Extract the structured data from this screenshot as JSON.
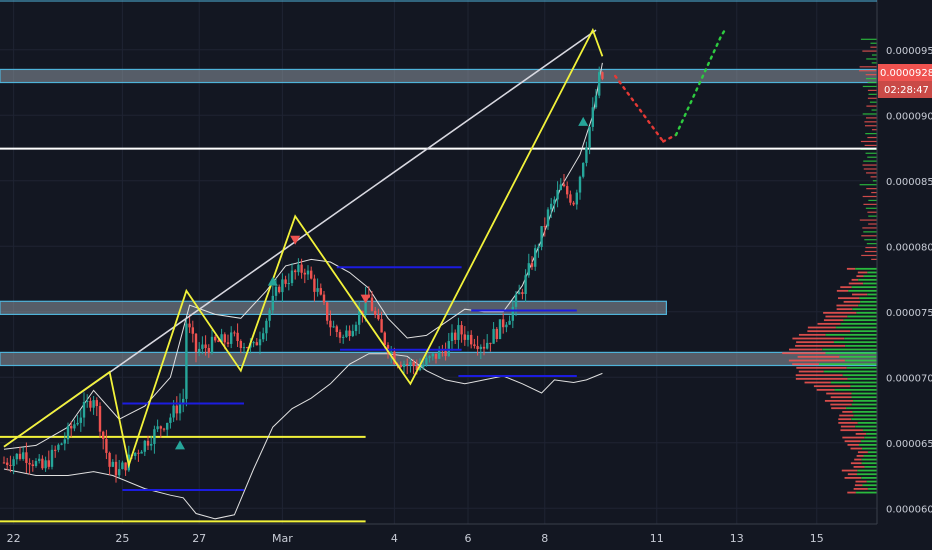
{
  "colors": {
    "background": "#131722",
    "grid": "#1f2433",
    "bull": "#26a69a",
    "bear": "#ef5350",
    "pattern": "#f2f23a",
    "channel": "#e0e0e0",
    "zone_fill": "#9aa3ad",
    "zone_border": "#4fb3d9",
    "range_line": "#1c1ce0",
    "axis_text": "#c8ccd6",
    "price_badge": "#ef5350",
    "projection_down": "#e53935",
    "projection_up": "#2ecc40"
  },
  "chart_data": {
    "type": "candlestick",
    "title": "",
    "y_axis": {
      "side": "right",
      "ylim": [
        5.88e-05,
        9.88e-05
      ],
      "ticks": [
        "0.0000950",
        "0.0000900",
        "0.0000850",
        "0.0000800",
        "0.0000750",
        "0.0000700",
        "0.0000650",
        "0.0000600"
      ],
      "tick_values": [
        9.5e-05,
        9e-05,
        8.5e-05,
        8e-05,
        7.5e-05,
        7e-05,
        6.5e-05,
        6e-05
      ]
    },
    "x_axis": {
      "ticks": [
        "22",
        "25",
        "27",
        "Mar",
        "4",
        "6",
        "8",
        "11",
        "13",
        "15"
      ],
      "tick_index": [
        3,
        37,
        61,
        87,
        122,
        145,
        169,
        204,
        229,
        254
      ]
    },
    "last_price_label": "0.0000928",
    "countdown_label": "02:28:47",
    "grid": true,
    "series": [
      {
        "name": "",
        "close_path": [
          [
            0,
            63.5
          ],
          [
            6,
            64.2
          ],
          [
            12,
            63.0
          ],
          [
            18,
            65.0
          ],
          [
            24,
            67.2
          ],
          [
            28,
            68.6
          ],
          [
            33,
            63.2
          ],
          [
            36,
            62.8
          ],
          [
            40,
            64.0
          ],
          [
            46,
            65.5
          ],
          [
            52,
            67.0
          ],
          [
            56,
            68.4
          ],
          [
            57,
            74.2
          ],
          [
            60,
            72.0
          ],
          [
            66,
            72.6
          ],
          [
            72,
            73.0
          ],
          [
            78,
            72.2
          ],
          [
            82,
            74.5
          ],
          [
            86,
            77.0
          ],
          [
            90,
            77.8
          ],
          [
            94,
            78.3
          ],
          [
            98,
            76.5
          ],
          [
            102,
            74.0
          ],
          [
            106,
            73.0
          ],
          [
            110,
            74.5
          ],
          [
            114,
            76.0
          ],
          [
            118,
            73.2
          ],
          [
            122,
            71.5
          ],
          [
            126,
            71.0
          ],
          [
            130,
            70.8
          ],
          [
            134,
            71.5
          ],
          [
            138,
            72.2
          ],
          [
            142,
            73.5
          ],
          [
            146,
            73.0
          ],
          [
            150,
            72.5
          ],
          [
            154,
            73.5
          ],
          [
            158,
            74.8
          ],
          [
            162,
            76.8
          ],
          [
            166,
            79.5
          ],
          [
            170,
            82.5
          ],
          [
            174,
            84.5
          ],
          [
            178,
            83.5
          ],
          [
            180,
            85.5
          ],
          [
            182,
            88.0
          ],
          [
            184,
            90.2
          ],
          [
            186,
            92.8
          ],
          [
            187,
            92.8
          ]
        ]
      }
    ],
    "indicators": {
      "upper_band": [
        [
          0,
          64.5
        ],
        [
          10,
          64.8
        ],
        [
          20,
          66.2
        ],
        [
          28,
          69.0
        ],
        [
          36,
          66.8
        ],
        [
          44,
          67.8
        ],
        [
          52,
          70.0
        ],
        [
          58,
          75.5
        ],
        [
          66,
          74.8
        ],
        [
          74,
          74.5
        ],
        [
          82,
          76.6
        ],
        [
          88,
          78.5
        ],
        [
          96,
          79.0
        ],
        [
          102,
          78.8
        ],
        [
          108,
          78.0
        ],
        [
          114,
          76.8
        ],
        [
          120,
          74.5
        ],
        [
          126,
          73.0
        ],
        [
          132,
          73.2
        ],
        [
          138,
          74.2
        ],
        [
          144,
          75.2
        ],
        [
          150,
          75.0
        ],
        [
          156,
          75.0
        ],
        [
          162,
          77.0
        ],
        [
          168,
          80.5
        ],
        [
          174,
          84.5
        ],
        [
          180,
          87.0
        ],
        [
          184,
          90.0
        ],
        [
          187,
          94.0
        ]
      ],
      "lower_band": [
        [
          0,
          63.0
        ],
        [
          10,
          62.5
        ],
        [
          20,
          62.5
        ],
        [
          28,
          62.8
        ],
        [
          34,
          62.5
        ],
        [
          44,
          61.5
        ],
        [
          52,
          61.0
        ],
        [
          56,
          60.8
        ],
        [
          60,
          59.6
        ],
        [
          66,
          59.2
        ],
        [
          72,
          59.5
        ],
        [
          78,
          63.0
        ],
        [
          84,
          66.2
        ],
        [
          90,
          67.6
        ],
        [
          96,
          68.4
        ],
        [
          102,
          69.5
        ],
        [
          108,
          71.0
        ],
        [
          114,
          71.8
        ],
        [
          120,
          71.8
        ],
        [
          126,
          71.6
        ],
        [
          132,
          70.5
        ],
        [
          138,
          69.8
        ],
        [
          144,
          69.5
        ],
        [
          150,
          69.8
        ],
        [
          156,
          70.1
        ],
        [
          162,
          69.5
        ],
        [
          168,
          68.8
        ],
        [
          172,
          69.8
        ],
        [
          178,
          69.6
        ],
        [
          182,
          69.8
        ],
        [
          187,
          70.3
        ]
      ],
      "yellow_pattern": [
        [
          0,
          64.7
        ],
        [
          33,
          70.4
        ],
        [
          39,
          63.3
        ],
        [
          57,
          76.6
        ],
        [
          74,
          70.5
        ],
        [
          91,
          82.3
        ],
        [
          127,
          69.5
        ],
        [
          184,
          96.5
        ],
        [
          187,
          94.5
        ]
      ],
      "channel_line": [
        [
          0,
          64.7
        ],
        [
          185,
          96.5
        ]
      ],
      "horizontal_lines": [
        {
          "price": 8.745e-05,
          "color": "white"
        },
        {
          "price": 6.545e-05,
          "color": "yellow",
          "x_end": 113
        },
        {
          "price": 5.9e-05,
          "color": "yellow",
          "x_end": 113
        }
      ],
      "zones": [
        {
          "from": 9.25e-05,
          "to": 9.35e-05
        },
        {
          "from": 7.48e-05,
          "to": 7.58e-05,
          "x_end": 207
        },
        {
          "from": 7.09e-05,
          "to": 7.19e-05
        }
      ],
      "range_lines": [
        {
          "price": 6.8e-05,
          "x_from": 37,
          "x_to": 75
        },
        {
          "price": 6.14e-05,
          "x_from": 37,
          "x_to": 75
        },
        {
          "price": 7.84e-05,
          "x_from": 104,
          "x_to": 143
        },
        {
          "price": 7.51e-05,
          "x_from": 146,
          "x_to": 179
        },
        {
          "price": 7.21e-05,
          "x_from": 105,
          "x_to": 143
        },
        {
          "price": 7.01e-05,
          "x_from": 142,
          "x_to": 179
        }
      ],
      "projection": {
        "down": [
          [
            191,
            93.0
          ],
          [
            206,
            88.0
          ]
        ],
        "down2": [
          [
            206,
            88.0
          ],
          [
            210,
            88.5
          ]
        ],
        "up": [
          [
            210,
            88.5
          ],
          [
            224,
            96.0
          ],
          [
            225,
            96.4
          ]
        ]
      }
    },
    "volume_profile_zones": [
      {
        "label": "",
        "from": 6.12e-05,
        "to": 7.85e-05
      }
    ]
  }
}
